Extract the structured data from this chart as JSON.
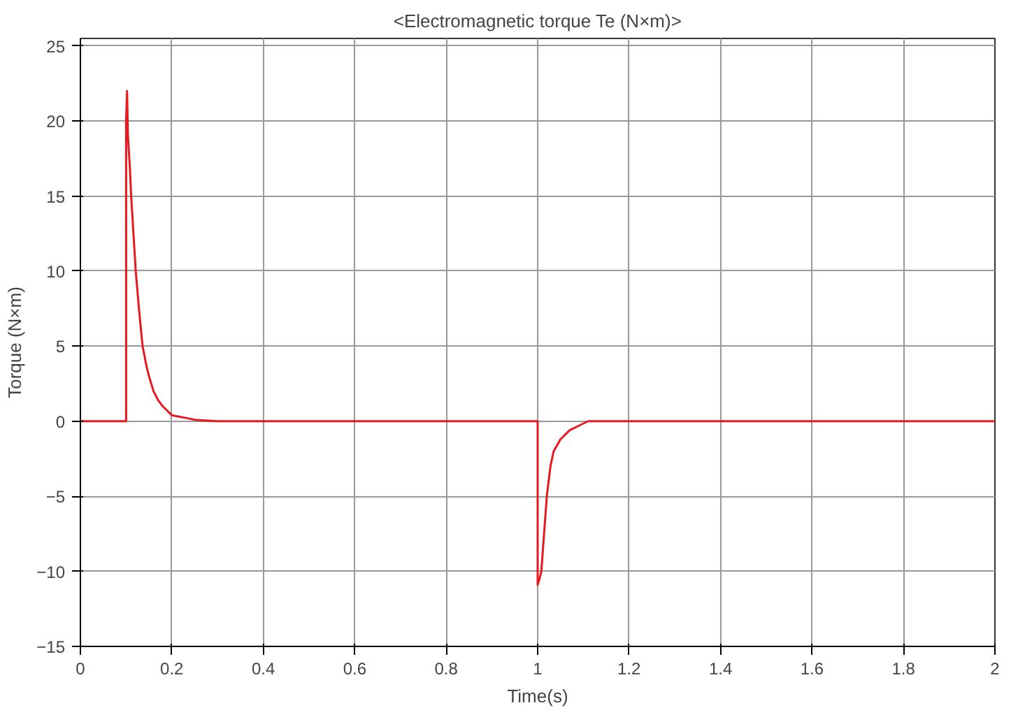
{
  "chart_data": {
    "type": "line",
    "title": "<Electromagnetic torque Te (N×m)>",
    "xlabel": "Time(s)",
    "ylabel": "Torque (N×m)",
    "xlim": [
      0,
      2
    ],
    "ylim": [
      -15,
      25.5
    ],
    "xticks": [
      0,
      0.2,
      0.4,
      0.6,
      0.8,
      1,
      1.2,
      1.4,
      1.6,
      1.8,
      2
    ],
    "yticks": [
      -15,
      -10,
      -5,
      0,
      5,
      10,
      15,
      20,
      25
    ],
    "grid": true,
    "series": [
      {
        "color": "#e8191e",
        "x": [
          0,
          0.1,
          0.1,
          0.102,
          0.104,
          0.108,
          0.111,
          0.116,
          0.121,
          0.128,
          0.136,
          0.145,
          0.15,
          0.16,
          0.17,
          0.18,
          0.2,
          0.25,
          0.3,
          0.6,
          0.99,
          1.0,
          1.0,
          1.004,
          1.008,
          1.014,
          1.02,
          1.028,
          1.035,
          1.05,
          1.07,
          1.09,
          1.11,
          1.2,
          1.5,
          2
        ],
        "values": [
          0,
          0,
          20,
          22,
          19,
          17,
          15,
          12.5,
          10,
          7.5,
          5,
          3.6,
          3,
          2,
          1.4,
          1,
          0.4,
          0.1,
          0,
          0,
          0,
          0,
          -10.9,
          -10.5,
          -10,
          -7.5,
          -5,
          -3,
          -2,
          -1.2,
          -0.6,
          -0.3,
          0,
          0,
          0,
          0
        ]
      }
    ]
  }
}
